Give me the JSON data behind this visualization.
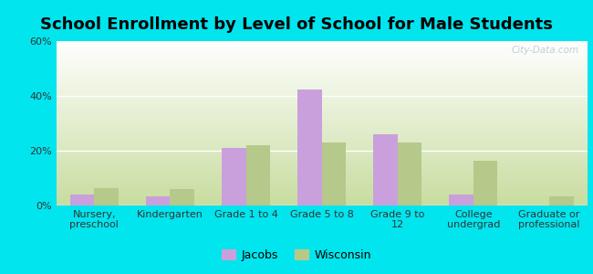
{
  "title": "School Enrollment by Level of School for Male Students",
  "categories": [
    "Nursery,\npreschool",
    "Kindergarten",
    "Grade 1 to 4",
    "Grade 5 to 8",
    "Grade 9 to\n12",
    "College\nundergrad",
    "Graduate or\nprofessional"
  ],
  "jacobs_values": [
    4.0,
    3.5,
    21.0,
    42.5,
    26.0,
    4.0,
    0.0
  ],
  "wisconsin_values": [
    6.5,
    6.0,
    22.0,
    23.0,
    23.0,
    16.5,
    3.5
  ],
  "jacobs_color": "#c9a0dc",
  "wisconsin_color": "#b5c98a",
  "background_outer": "#00e5ee",
  "grad_top": "#ffffff",
  "grad_bottom": "#c8dda0",
  "ylim": [
    0,
    60
  ],
  "yticks": [
    0,
    20,
    40,
    60
  ],
  "ytick_labels": [
    "0%",
    "20%",
    "40%",
    "60%"
  ],
  "legend_labels": [
    "Jacobs",
    "Wisconsin"
  ],
  "bar_width": 0.32,
  "title_fontsize": 13,
  "tick_fontsize": 8,
  "watermark": "City-Data.com"
}
